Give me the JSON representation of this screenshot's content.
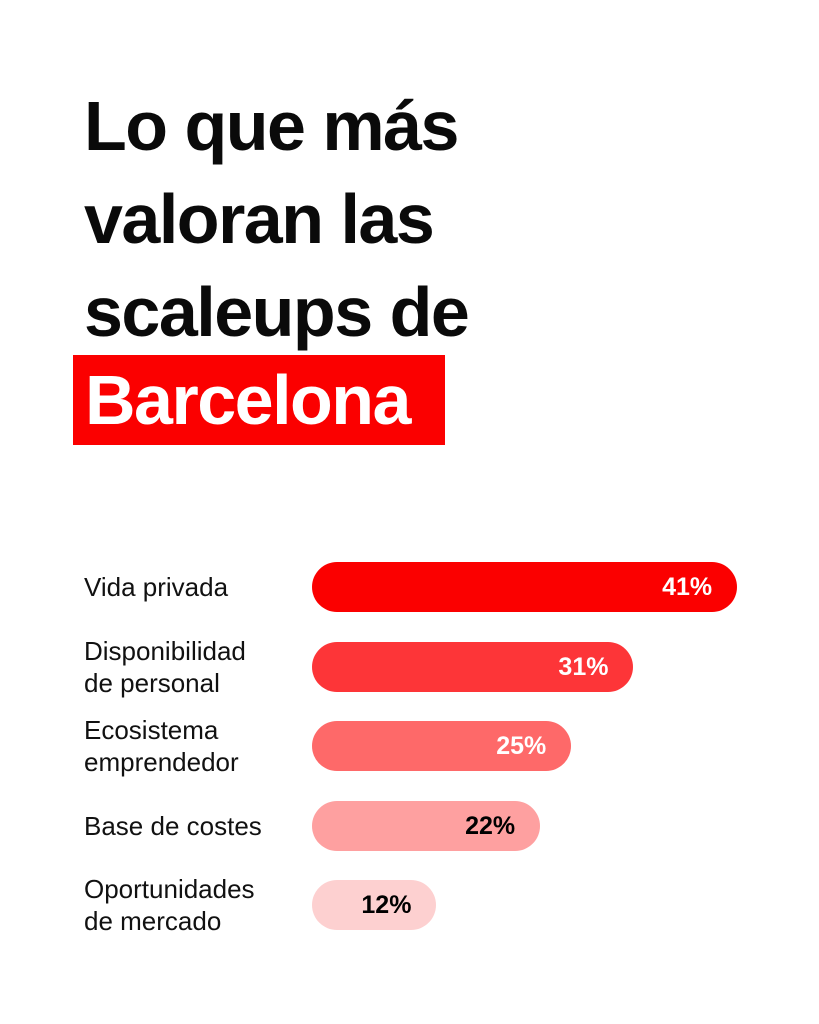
{
  "title": {
    "lines": [
      "Lo que más",
      "valoran las",
      "scaleups de"
    ],
    "highlight": "Barcelona"
  },
  "colors": {
    "accent": "#fb0000"
  },
  "chart_data": {
    "type": "bar",
    "orientation": "horizontal",
    "title": "Lo que más valoran las scaleups de Barcelona",
    "categories": [
      "Vida privada",
      "Disponibilidad de personal",
      "Ecosistema emprendedor",
      "Base de costes",
      "Oportunidades de mercado"
    ],
    "label_lines": [
      [
        "Vida privada"
      ],
      [
        "Disponibilidad",
        "de personal"
      ],
      [
        "Ecosistema",
        "emprendedor"
      ],
      [
        "Base de costes"
      ],
      [
        "Oportunidades",
        "de mercado"
      ]
    ],
    "values": [
      41,
      31,
      25,
      22,
      12
    ],
    "value_labels": [
      "41%",
      "31%",
      "25%",
      "22%",
      "12%"
    ],
    "bar_colors": [
      "#fb0000",
      "#fd3538",
      "#fe6969",
      "#fea0a0",
      "#fdd0d0"
    ],
    "label_colors": [
      "#ffffff",
      "#ffffff",
      "#ffffff",
      "#000000",
      "#000000"
    ],
    "unit": "%"
  }
}
